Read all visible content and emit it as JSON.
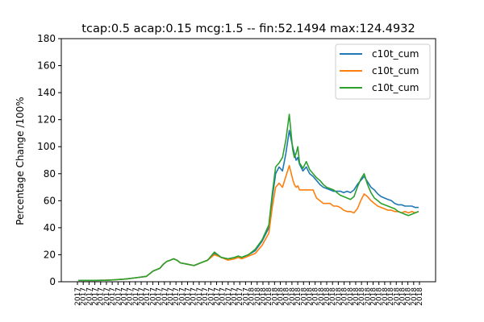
{
  "chart_data": {
    "type": "line",
    "title": "tcap:0.5 acap:0.15 mcg:1.5 -- fin:52.1494 max:124.4932",
    "xlabel": "",
    "ylabel": "Percentage Change /100%",
    "ylim": [
      0,
      180
    ],
    "yticks": [
      0,
      20,
      40,
      60,
      80,
      100,
      120,
      140,
      160,
      180
    ],
    "grid": false,
    "legend_position": "top-right",
    "x": [
      0,
      0.02,
      0.05,
      0.08,
      0.11,
      0.14,
      0.17,
      0.2,
      0.22,
      0.24,
      0.25,
      0.26,
      0.27,
      0.28,
      0.29,
      0.3,
      0.32,
      0.34,
      0.36,
      0.38,
      0.4,
      0.42,
      0.44,
      0.46,
      0.47,
      0.48,
      0.5,
      0.52,
      0.54,
      0.56,
      0.57,
      0.58,
      0.59,
      0.6,
      0.61,
      0.62,
      0.63,
      0.635,
      0.64,
      0.645,
      0.65,
      0.66,
      0.67,
      0.68,
      0.69,
      0.7,
      0.71,
      0.72,
      0.73,
      0.74,
      0.75,
      0.76,
      0.77,
      0.78,
      0.79,
      0.8,
      0.81,
      0.82,
      0.83,
      0.84,
      0.85,
      0.86,
      0.87,
      0.88,
      0.89,
      0.9,
      0.91,
      0.92,
      0.93,
      0.94,
      0.95,
      0.96,
      0.97,
      0.98,
      0.99,
      1.0
    ],
    "series": [
      {
        "name": "c10t_cum",
        "color": "#1f77b4",
        "values": [
          1,
          1,
          1,
          1.1,
          1.5,
          2,
          3,
          4,
          8,
          10,
          13,
          15,
          16,
          17,
          16,
          14,
          13,
          12,
          14,
          16,
          21,
          18,
          17,
          18,
          19,
          18,
          20,
          23,
          30,
          40,
          62,
          80,
          85,
          82,
          95,
          112,
          100,
          95,
          90,
          92,
          87,
          82,
          85,
          80,
          78,
          75,
          72,
          70,
          69,
          68,
          67,
          67,
          67,
          66,
          67,
          66,
          68,
          72,
          75,
          78,
          74,
          70,
          68,
          65,
          63,
          62,
          61,
          60,
          58,
          57,
          57,
          56,
          56,
          56,
          55,
          55
        ]
      },
      {
        "name": "c10t_cum",
        "color": "#ff7f0e",
        "values": [
          1,
          1,
          1,
          1.1,
          1.5,
          2,
          3,
          4,
          8,
          10,
          13,
          15,
          16,
          17,
          16,
          14,
          13,
          12,
          14,
          16,
          20,
          18,
          16,
          17,
          18,
          17,
          19,
          21,
          27,
          36,
          55,
          70,
          73,
          70,
          78,
          86,
          76,
          72,
          70,
          71,
          68,
          68,
          68,
          68,
          68,
          62,
          60,
          58,
          58,
          58,
          56,
          56,
          55,
          53,
          52,
          52,
          51,
          54,
          60,
          65,
          63,
          60,
          58,
          56,
          55,
          54,
          53,
          53,
          52,
          52,
          51,
          52,
          51,
          52,
          51,
          52
        ]
      },
      {
        "name": "c10t_cum",
        "color": "#2ca02c",
        "values": [
          1,
          1,
          1,
          1.1,
          1.5,
          2,
          3,
          4,
          8,
          10,
          13,
          15,
          16,
          17,
          16,
          14,
          13,
          12,
          14,
          16,
          22,
          18,
          17,
          18,
          19,
          18,
          20,
          24,
          31,
          42,
          65,
          85,
          88,
          92,
          105,
          124,
          98,
          92,
          95,
          100,
          88,
          84,
          89,
          83,
          80,
          77,
          75,
          72,
          70,
          69,
          68,
          66,
          64,
          63,
          62,
          61,
          63,
          70,
          76,
          80,
          72,
          66,
          62,
          60,
          58,
          57,
          56,
          55,
          54,
          52,
          51,
          50,
          49,
          50,
          51,
          52
        ]
      }
    ],
    "xticks_label": "2017...2018"
  }
}
